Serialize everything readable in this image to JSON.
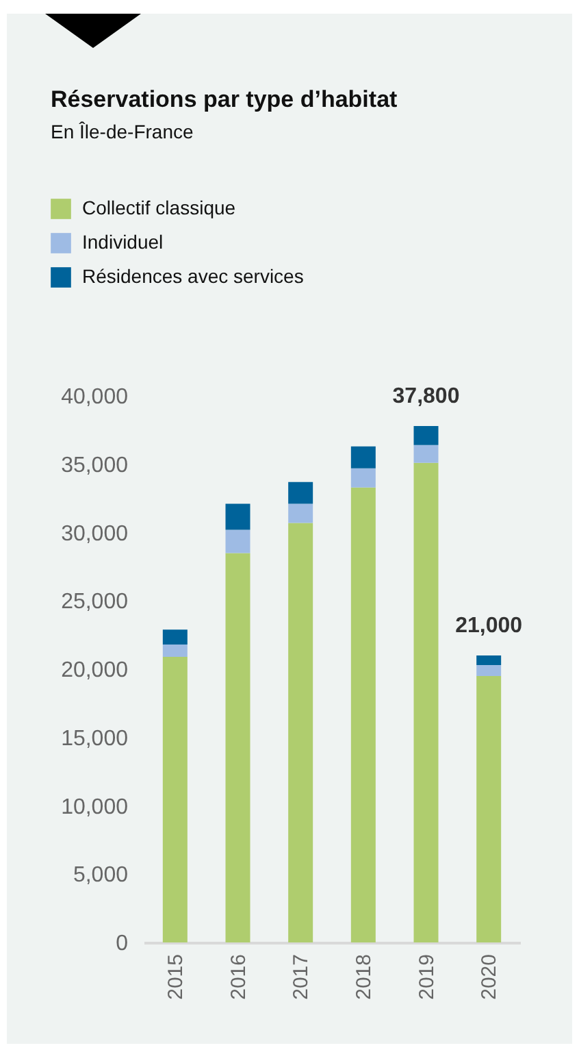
{
  "chart_data": {
    "type": "bar",
    "title": "Réservations par type d’habitat",
    "subtitle": "En Île-de-France",
    "stacked": true,
    "categories": [
      "2015",
      "2016",
      "2017",
      "2018",
      "2019",
      "2020"
    ],
    "series": [
      {
        "name": "Collectif classique",
        "color": "#afcd6e",
        "values": [
          20900,
          28500,
          30700,
          33300,
          35100,
          19500
        ]
      },
      {
        "name": "Individuel",
        "color": "#9ebbe4",
        "values": [
          900,
          1700,
          1400,
          1400,
          1300,
          800
        ]
      },
      {
        "name": "Résidences avec services",
        "color": "#00639a",
        "values": [
          1100,
          1900,
          1600,
          1600,
          1400,
          700
        ]
      }
    ],
    "totals": [
      null,
      null,
      null,
      null,
      "37,800",
      "21,000"
    ],
    "ylim": [
      0,
      40000
    ],
    "yticks": [
      0,
      {
        "value": 5000,
        "label": "5,000"
      },
      {
        "value": 10000,
        "label": "10,000"
      },
      {
        "value": 15000,
        "label": "15,000"
      },
      {
        "value": 20000,
        "label": "20,000"
      },
      {
        "value": 25000,
        "label": "25,000"
      },
      {
        "value": 30000,
        "label": "30,000"
      },
      {
        "value": 35000,
        "label": "35,000"
      },
      {
        "value": 40000,
        "label": "40,000"
      }
    ],
    "grid": false,
    "legend": "top left"
  }
}
